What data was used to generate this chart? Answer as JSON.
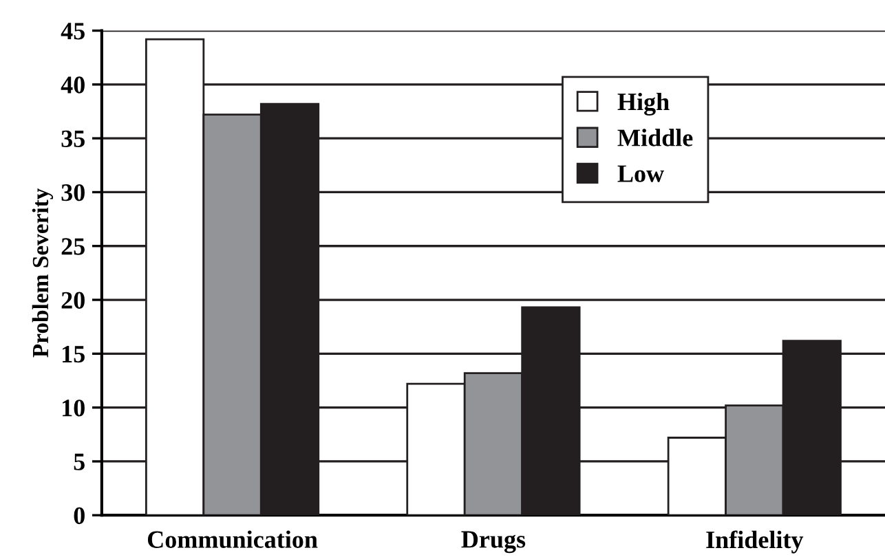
{
  "chart_data": {
    "type": "bar",
    "ylabel": "Problem Severity",
    "categories": [
      "Communication",
      "Drugs",
      "Infidelity"
    ],
    "series": [
      {
        "name": "High",
        "color": "#ffffff",
        "values": [
          44.2,
          12.2,
          7.2
        ]
      },
      {
        "name": "Middle",
        "color": "#939498",
        "values": [
          37.2,
          13.2,
          10.2
        ]
      },
      {
        "name": "Low",
        "color": "#231f20",
        "values": [
          38.2,
          19.3,
          16.2
        ]
      }
    ],
    "ylim": [
      0,
      45
    ],
    "yticks": [
      0,
      5,
      10,
      15,
      20,
      25,
      30,
      35,
      40,
      45
    ],
    "grid": "y",
    "legend": "top right"
  }
}
